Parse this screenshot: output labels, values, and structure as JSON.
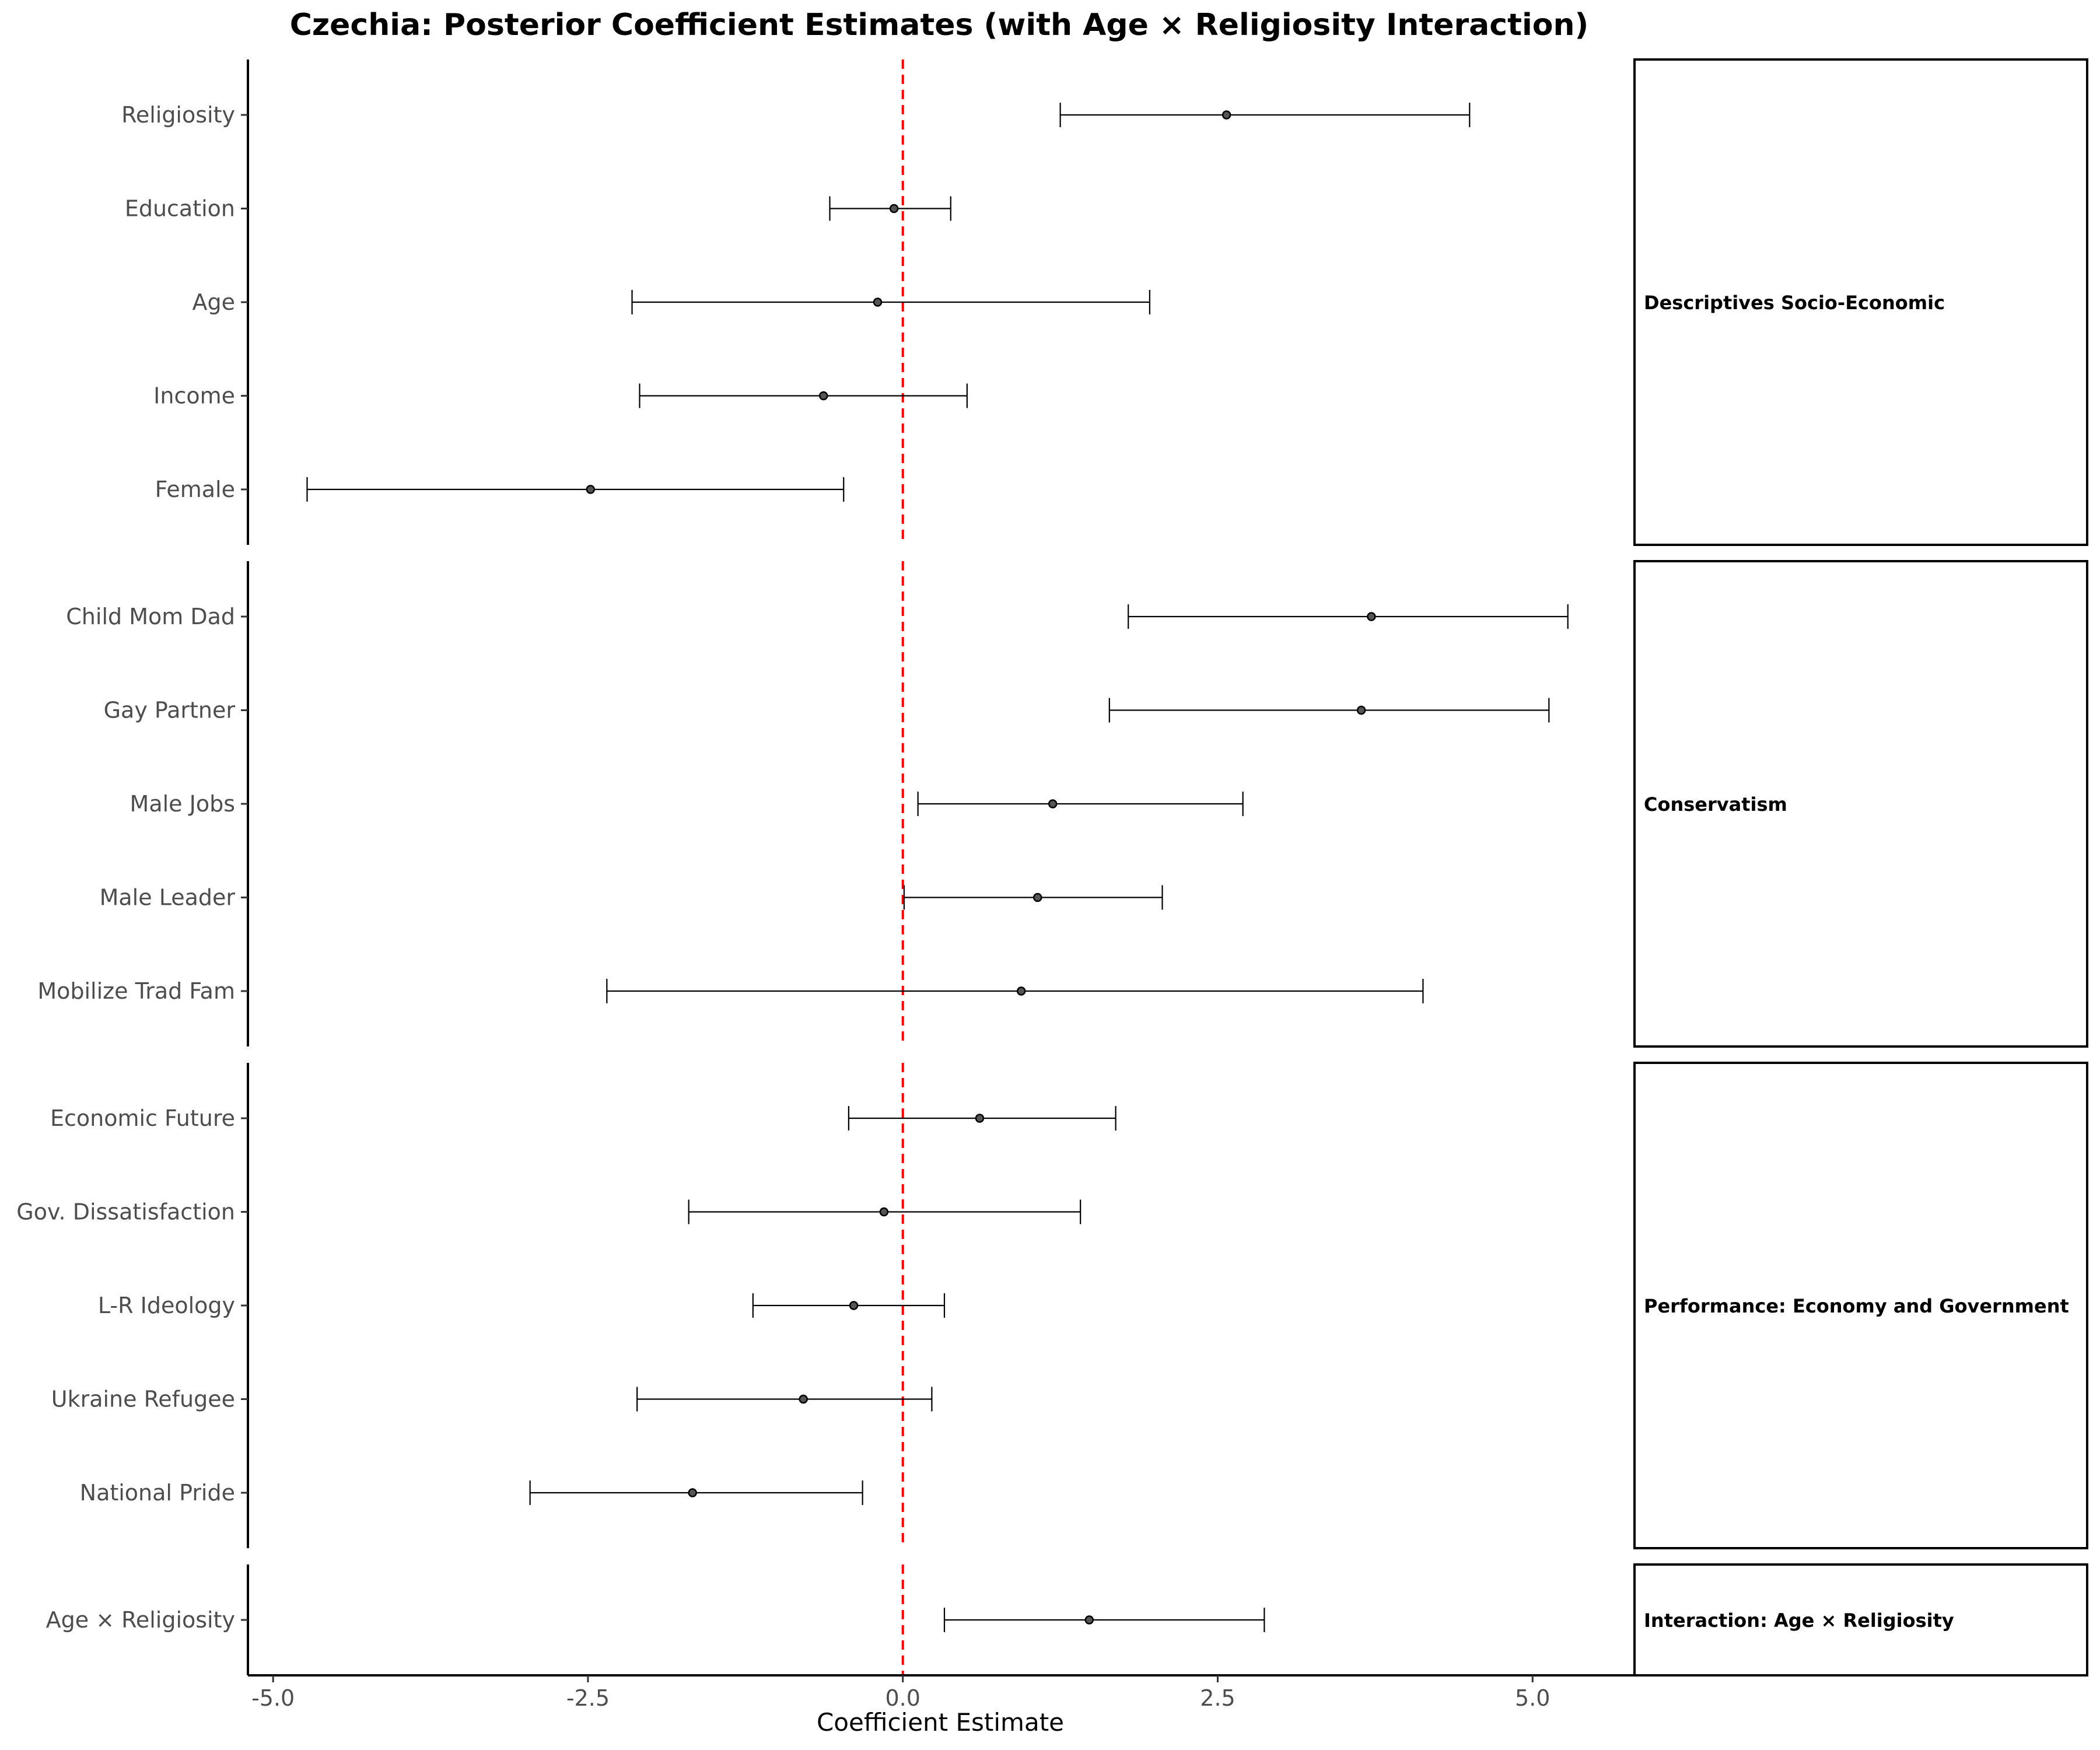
{
  "chart_data": {
    "type": "forest",
    "title": "Czechia: Posterior Coefficient Estimates (with Age × Religiosity Interaction)",
    "xlabel": "Coefficient Estimate",
    "xlim": [
      -5.2,
      5.8
    ],
    "xticks": [
      -5.0,
      -2.5,
      0.0,
      2.5,
      5.0
    ],
    "xtick_labels": [
      "-5.0",
      "-2.5",
      "0.0",
      "2.5",
      "5.0"
    ],
    "reference_line": {
      "x": 0.0,
      "color": "#ff0000",
      "style": "dashed"
    },
    "panels": [
      {
        "label": "Descriptives Socio-Economic",
        "items": [
          {
            "name": "Religiosity",
            "estimate": 2.57,
            "lower": 1.25,
            "upper": 4.5
          },
          {
            "name": "Education",
            "estimate": -0.07,
            "lower": -0.58,
            "upper": 0.38
          },
          {
            "name": "Age",
            "estimate": -0.2,
            "lower": -2.15,
            "upper": 1.96
          },
          {
            "name": "Income",
            "estimate": -0.63,
            "lower": -2.09,
            "upper": 0.51
          },
          {
            "name": "Female",
            "estimate": -2.48,
            "lower": -4.73,
            "upper": -0.47
          }
        ]
      },
      {
        "label": "Conservatism",
        "items": [
          {
            "name": "Child Mom Dad",
            "estimate": 3.72,
            "lower": 1.79,
            "upper": 5.28
          },
          {
            "name": "Gay Partner",
            "estimate": 3.64,
            "lower": 1.64,
            "upper": 5.13
          },
          {
            "name": "Male Jobs",
            "estimate": 1.19,
            "lower": 0.12,
            "upper": 2.7
          },
          {
            "name": "Male Leader",
            "estimate": 1.07,
            "lower": 0.01,
            "upper": 2.06
          },
          {
            "name": "Mobilize Trad Fam",
            "estimate": 0.94,
            "lower": -2.35,
            "upper": 4.13
          }
        ]
      },
      {
        "label": "Performance: Economy and Government",
        "items": [
          {
            "name": "Economic Future",
            "estimate": 0.61,
            "lower": -0.43,
            "upper": 1.69
          },
          {
            "name": "Gov. Dissatisfaction",
            "estimate": -0.15,
            "lower": -1.7,
            "upper": 1.41
          },
          {
            "name": "L-R Ideology",
            "estimate": -0.39,
            "lower": -1.19,
            "upper": 0.33
          },
          {
            "name": "Ukraine Refugee",
            "estimate": -0.79,
            "lower": -2.11,
            "upper": 0.23
          },
          {
            "name": "National Pride",
            "estimate": -1.67,
            "lower": -2.96,
            "upper": -0.32
          }
        ]
      },
      {
        "label": "Interaction: Age × Religiosity",
        "items": [
          {
            "name": "Age × Religiosity",
            "estimate": 1.48,
            "lower": 0.33,
            "upper": 2.87
          }
        ]
      }
    ]
  }
}
